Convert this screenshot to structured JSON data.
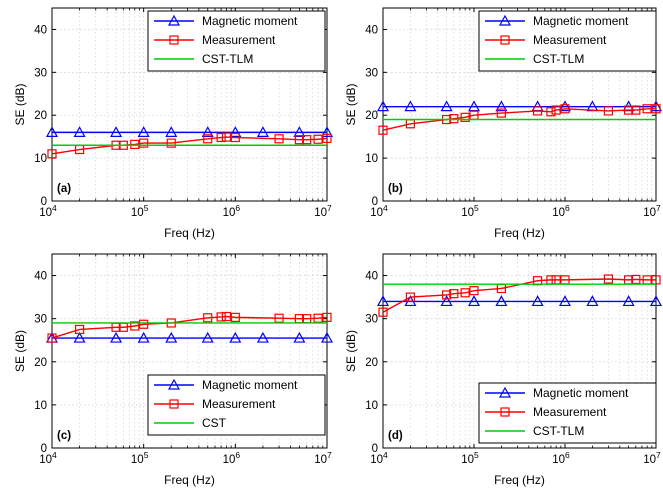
{
  "colors": {
    "magnetic": "#0000ff",
    "measurement": "#ff0000",
    "cst": "#00cc00",
    "grid": "#c8c8c8"
  },
  "chart_data": [
    {
      "type": "line",
      "panel_label": "(a)",
      "xlabel": "Freq (Hz)",
      "ylabel": "SE (dB)",
      "xscale": "log",
      "xlim": [
        10000,
        10000000
      ],
      "ylim": [
        0,
        45
      ],
      "xticks": [
        10000,
        100000,
        1000000,
        10000000
      ],
      "xtick_labels": [
        {
          "base": "10",
          "exp": "4"
        },
        {
          "base": "10",
          "exp": "5"
        },
        {
          "base": "10",
          "exp": "6"
        },
        {
          "base": "10",
          "exp": "7"
        }
      ],
      "yticks": [
        0,
        10,
        20,
        30,
        40
      ],
      "ytick_labels": [
        "0",
        "10",
        "20",
        "30",
        "40"
      ],
      "grid": true,
      "legend_position": "top-right",
      "series": [
        {
          "name": "Magnetic moment",
          "marker": "triangle",
          "color": "#0000ff",
          "x": [
            10000,
            20000,
            50000,
            100000,
            200000,
            500000,
            1000000,
            2000000,
            5000000,
            10000000
          ],
          "y": [
            16,
            16,
            16,
            16,
            16,
            16,
            16,
            16,
            16,
            16
          ]
        },
        {
          "name": "Measurement",
          "marker": "square",
          "color": "#ff0000",
          "x": [
            10000,
            20000,
            50000,
            60000,
            80000,
            100000,
            200000,
            500000,
            700000,
            800000,
            1000000,
            3000000,
            5000000,
            6000000,
            8000000,
            10000000
          ],
          "y": [
            11,
            12,
            13,
            13,
            13.2,
            13.5,
            13.5,
            14.5,
            14.8,
            14.9,
            14.8,
            14.5,
            14.3,
            14.3,
            14.4,
            14.6
          ]
        },
        {
          "name": "CST-TLM",
          "marker": "none",
          "color": "#00cc00",
          "x": [
            10000,
            10000000
          ],
          "y": [
            13,
            13
          ]
        }
      ]
    },
    {
      "type": "line",
      "panel_label": "(b)",
      "xlabel": "Freq (Hz)",
      "ylabel": "SE (dB)",
      "xscale": "log",
      "xlim": [
        10000,
        10000000
      ],
      "ylim": [
        0,
        45
      ],
      "xticks": [
        10000,
        100000,
        1000000,
        10000000
      ],
      "xtick_labels": [
        {
          "base": "10",
          "exp": "4"
        },
        {
          "base": "10",
          "exp": "5"
        },
        {
          "base": "10",
          "exp": "6"
        },
        {
          "base": "10",
          "exp": "7"
        }
      ],
      "yticks": [
        0,
        10,
        20,
        30,
        40
      ],
      "ytick_labels": [
        "0",
        "10",
        "20",
        "30",
        "40"
      ],
      "grid": true,
      "legend_position": "top-right",
      "series": [
        {
          "name": "Magnetic moment",
          "marker": "triangle",
          "color": "#0000ff",
          "x": [
            10000,
            20000,
            50000,
            100000,
            200000,
            500000,
            1000000,
            2000000,
            5000000,
            10000000
          ],
          "y": [
            22,
            22,
            22,
            22,
            22,
            22,
            22,
            22,
            22,
            22
          ]
        },
        {
          "name": "Measurement",
          "marker": "square",
          "color": "#ff0000",
          "x": [
            10000,
            20000,
            50000,
            60000,
            80000,
            100000,
            200000,
            500000,
            700000,
            800000,
            1000000,
            3000000,
            5000000,
            6000000,
            8000000,
            10000000
          ],
          "y": [
            16.5,
            18,
            19,
            19.2,
            19.5,
            20,
            20.5,
            21,
            20.8,
            21.2,
            21.5,
            21,
            21.2,
            21.2,
            21.5,
            21.5
          ]
        },
        {
          "name": "CST-TLM",
          "marker": "none",
          "color": "#00cc00",
          "x": [
            10000,
            10000000
          ],
          "y": [
            19,
            19
          ]
        }
      ]
    },
    {
      "type": "line",
      "panel_label": "(c)",
      "xlabel": "Freq (Hz)",
      "ylabel": "SE (dB)",
      "xscale": "log",
      "xlim": [
        10000,
        10000000
      ],
      "ylim": [
        0,
        45
      ],
      "xticks": [
        10000,
        100000,
        1000000,
        10000000
      ],
      "xtick_labels": [
        {
          "base": "10",
          "exp": "4"
        },
        {
          "base": "10",
          "exp": "5"
        },
        {
          "base": "10",
          "exp": "6"
        },
        {
          "base": "10",
          "exp": "7"
        }
      ],
      "yticks": [
        0,
        10,
        20,
        30,
        40
      ],
      "ytick_labels": [
        "0",
        "10",
        "20",
        "30",
        "40"
      ],
      "grid": true,
      "legend_position": "bottom-right",
      "series": [
        {
          "name": "Magnetic moment",
          "marker": "triangle",
          "color": "#0000ff",
          "x": [
            10000,
            20000,
            50000,
            100000,
            200000,
            500000,
            1000000,
            2000000,
            5000000,
            10000000
          ],
          "y": [
            25.5,
            25.5,
            25.5,
            25.5,
            25.5,
            25.5,
            25.5,
            25.5,
            25.5,
            25.5
          ]
        },
        {
          "name": "Measurement",
          "marker": "square",
          "color": "#ff0000",
          "x": [
            10000,
            20000,
            50000,
            60000,
            80000,
            100000,
            200000,
            500000,
            700000,
            800000,
            1000000,
            3000000,
            5000000,
            6000000,
            8000000,
            10000000
          ],
          "y": [
            25.5,
            27.5,
            28,
            28,
            28.3,
            28.7,
            29,
            30.2,
            30.4,
            30.5,
            30.3,
            30.1,
            30,
            30,
            30.1,
            30.3
          ]
        },
        {
          "name": "CST",
          "marker": "none",
          "color": "#00cc00",
          "x": [
            10000,
            10000000
          ],
          "y": [
            29,
            29
          ]
        }
      ]
    },
    {
      "type": "line",
      "panel_label": "(d)",
      "xlabel": "Freq (Hz)",
      "ylabel": "SE (dB)",
      "xscale": "log",
      "xlim": [
        10000,
        10000000
      ],
      "ylim": [
        0,
        45
      ],
      "xticks": [
        10000,
        100000,
        1000000,
        10000000
      ],
      "xtick_labels": [
        {
          "base": "10",
          "exp": "4"
        },
        {
          "base": "10",
          "exp": "5"
        },
        {
          "base": "10",
          "exp": "6"
        },
        {
          "base": "10",
          "exp": "7"
        }
      ],
      "yticks": [
        0,
        10,
        20,
        30,
        40
      ],
      "ytick_labels": [
        "0",
        "10",
        "20",
        "30",
        "40"
      ],
      "grid": true,
      "legend_position": "bottom-right",
      "series": [
        {
          "name": "Magnetic moment",
          "marker": "triangle",
          "color": "#0000ff",
          "x": [
            10000,
            20000,
            50000,
            100000,
            200000,
            500000,
            1000000,
            2000000,
            5000000,
            10000000
          ],
          "y": [
            34,
            34,
            34,
            34,
            34,
            34,
            34,
            34,
            34,
            34
          ]
        },
        {
          "name": "Measurement",
          "marker": "square",
          "color": "#ff0000",
          "x": [
            10000,
            20000,
            50000,
            60000,
            80000,
            100000,
            200000,
            500000,
            700000,
            800000,
            1000000,
            3000000,
            5000000,
            6000000,
            8000000,
            10000000
          ],
          "y": [
            31.5,
            35,
            35.5,
            35.8,
            36,
            36.5,
            37,
            38.8,
            39,
            39,
            39,
            39.2,
            39,
            39.1,
            39,
            39
          ]
        },
        {
          "name": "CST-TLM",
          "marker": "none",
          "color": "#00cc00",
          "x": [
            10000,
            10000000
          ],
          "y": [
            38,
            38
          ]
        }
      ]
    }
  ]
}
